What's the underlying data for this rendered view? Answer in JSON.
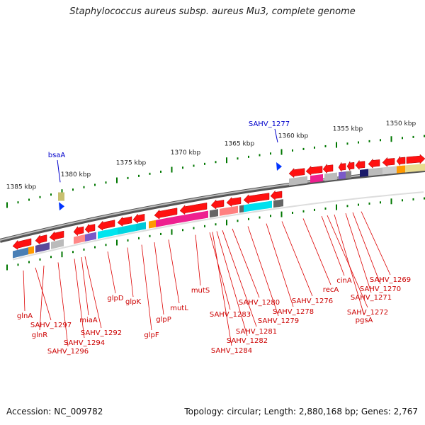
{
  "title": "Staphylococcus aureus subsp. aureus Mu3, complete genome",
  "accession": "Accession: NC_009782",
  "summary": "Topology: circular; Length: 2,880,168 bp; Genes: 2,767",
  "colors": {
    "gene_arrow": "#ff0000",
    "gene_label": "#cc0000",
    "tick": "#007700",
    "feature_label": "#0000cc",
    "backbone": "#777777"
  },
  "scale_labels": [
    {
      "text": "1385 kbp",
      "pos": 1385
    },
    {
      "text": "1380 kbp",
      "pos": 1380
    },
    {
      "text": "1375 kbp",
      "pos": 1375
    },
    {
      "text": "1370 kbp",
      "pos": 1370
    },
    {
      "text": "1365 kbp",
      "pos": 1365
    },
    {
      "text": "1360 kbp",
      "pos": 1360
    },
    {
      "text": "1355 kbp",
      "pos": 1355
    },
    {
      "text": "1350 kbp",
      "pos": 1350
    }
  ],
  "features": [
    {
      "label": "bsaA",
      "icon": "blue-arrow-marker"
    },
    {
      "label": "SAHV_1277",
      "icon": "blue-arrow-marker"
    }
  ],
  "gene_labels": [
    "glnA",
    "SAHV_1297",
    "glnR",
    "SAHV_1296",
    "SAHV_1294",
    "miaA",
    "SAHV_1292",
    "glpD",
    "glpK",
    "glpF",
    "glpP",
    "mutL",
    "mutS",
    "SAHV_1283",
    "SAHV_1284",
    "SAHV_1282",
    "SAHV_1281",
    "SAHV_1280",
    "SAHV_1279",
    "SAHV_1278",
    "SAHV_1276",
    "recA",
    "cinA",
    "SAHV_1272",
    "pgsA",
    "SAHV_1271",
    "SAHV_1270",
    "SAHV_1269"
  ]
}
